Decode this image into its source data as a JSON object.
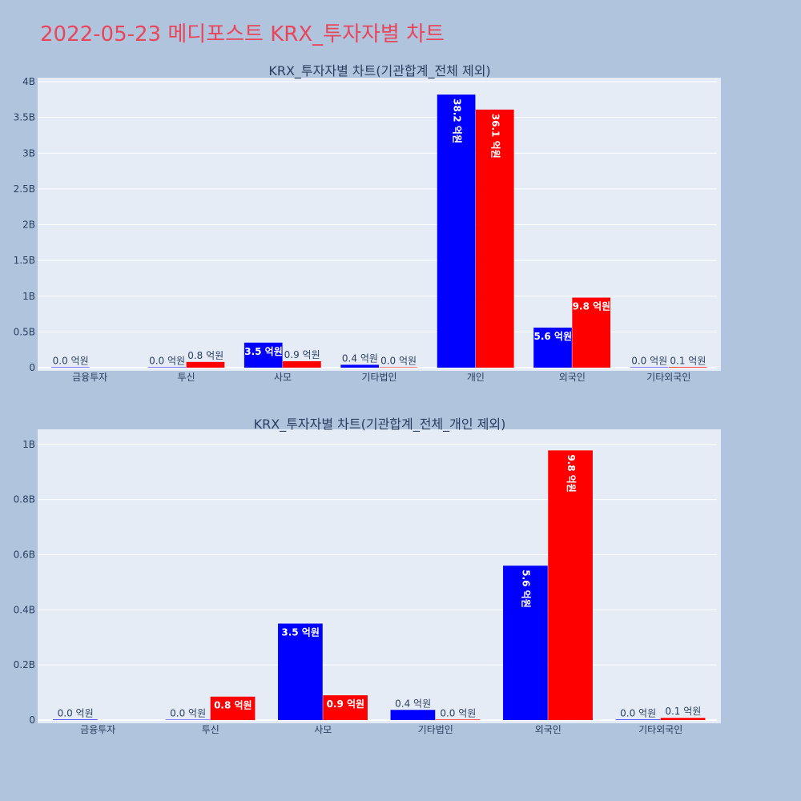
{
  "page": {
    "title": "2022-05-23 메디포스트 KRX_투자자별 차트"
  },
  "chart_data": [
    {
      "type": "bar",
      "title": "KRX_투자자별 차트(기관합계_전체 제외)",
      "categories": [
        "금융투자",
        "투신",
        "사모",
        "기타법인",
        "개인",
        "외국인",
        "기타외국인"
      ],
      "series": [
        {
          "color": "#0000ff",
          "values": [
            0.002,
            0.001,
            0.35,
            0.04,
            3.82,
            0.56,
            0.002
          ],
          "labels": [
            "0.0 억원",
            "0.0 억원",
            "3.5 억원",
            "0.4 억원",
            "38.2 억원",
            "5.6 억원",
            "0.0 억원"
          ]
        },
        {
          "color": "#ff0000",
          "values": [
            null,
            0.08,
            0.09,
            0.002,
            3.61,
            0.98,
            0.008
          ],
          "labels": [
            "",
            "0.8 억원",
            "0.9 억원",
            "0.0 억원",
            "36.1 억원",
            "9.8 억원",
            "0.1 억원"
          ]
        }
      ],
      "ylim": [
        0,
        4.0
      ],
      "yticks": [
        0,
        0.5,
        1,
        1.5,
        2,
        2.5,
        3,
        3.5,
        4
      ],
      "ytick_labels": [
        "0",
        "0.5B",
        "1B",
        "1.5B",
        "2B",
        "2.5B",
        "3B",
        "3.5B",
        "4B"
      ],
      "grid": true
    },
    {
      "type": "bar",
      "title": "KRX_투자자별 차트(기관합계_전체_개인 제외)",
      "categories": [
        "금융투자",
        "투신",
        "사모",
        "기타법인",
        "외국인",
        "기타외국인"
      ],
      "series": [
        {
          "color": "#0000ff",
          "values": [
            0.002,
            0.001,
            0.35,
            0.037,
            0.56,
            0.002
          ],
          "labels": [
            "0.0 억원",
            "0.0 억원",
            "3.5 억원",
            "0.4 억원",
            "5.6 억원",
            "0.0 억원"
          ]
        },
        {
          "color": "#ff0000",
          "values": [
            null,
            0.085,
            0.09,
            0.002,
            0.978,
            0.008
          ],
          "labels": [
            "",
            "0.8 억원",
            "0.9 억원",
            "0.0 억원",
            "9.8 억원",
            "0.1 억원"
          ]
        }
      ],
      "ylim": [
        0,
        1.04
      ],
      "yticks": [
        0,
        0.2,
        0.4,
        0.6,
        0.8,
        1.0
      ],
      "ytick_labels": [
        "0",
        "0.2B",
        "0.4B",
        "0.6B",
        "0.8B",
        "1B"
      ],
      "grid": true
    }
  ]
}
